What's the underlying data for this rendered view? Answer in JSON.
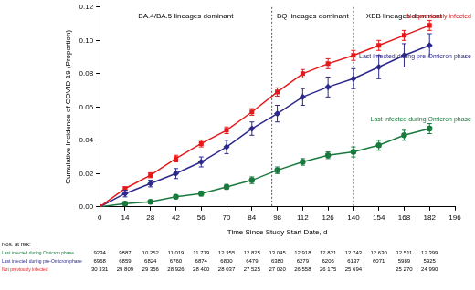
{
  "chart_data": {
    "type": "line",
    "x_label": "Time Since Study Start Date, d",
    "y_label": "Cumulative Incidence of COVID-19 (Proportion)",
    "x": [
      0,
      14,
      28,
      42,
      56,
      70,
      84,
      98,
      112,
      126,
      140,
      154,
      168,
      182
    ],
    "series": [
      {
        "name": "Not previously infected",
        "color": "#e41a1c",
        "marker": "square",
        "values": [
          0,
          0.011,
          0.019,
          0.029,
          0.038,
          0.046,
          0.057,
          0.069,
          0.08,
          0.086,
          0.091,
          0.097,
          0.103,
          0.109
        ],
        "error": [
          0,
          0.001,
          0.0015,
          0.002,
          0.002,
          0.002,
          0.002,
          0.0025,
          0.0025,
          0.003,
          0.003,
          0.003,
          0.003,
          0.003
        ]
      },
      {
        "name": "Last infected during pre-Omicron phase",
        "color": "#2d2a8c",
        "marker": "diamond",
        "values": [
          0,
          0.008,
          0.014,
          0.02,
          0.027,
          0.036,
          0.047,
          0.056,
          0.066,
          0.072,
          0.077,
          0.084,
          0.091,
          0.097
        ],
        "error": [
          0,
          0.002,
          0.002,
          0.003,
          0.003,
          0.004,
          0.004,
          0.005,
          0.005,
          0.006,
          0.006,
          0.007,
          0.007,
          0.007
        ]
      },
      {
        "name": "Last infected during Omicron phase",
        "color": "#1b7a3e",
        "marker": "circle",
        "values": [
          0,
          0.002,
          0.003,
          0.006,
          0.008,
          0.012,
          0.016,
          0.022,
          0.027,
          0.031,
          0.033,
          0.037,
          0.043,
          0.047
        ],
        "error": [
          0,
          0.001,
          0.001,
          0.001,
          0.0015,
          0.0015,
          0.002,
          0.002,
          0.002,
          0.002,
          0.003,
          0.003,
          0.003,
          0.003
        ]
      }
    ],
    "xlim": [
      0,
      196
    ],
    "xticks": [
      0,
      14,
      28,
      42,
      56,
      70,
      84,
      98,
      112,
      126,
      140,
      154,
      168,
      182,
      196
    ],
    "ylim": [
      0,
      0.12
    ],
    "yticks": [
      {
        "value": 0,
        "label": "0.00"
      },
      {
        "value": 0.02,
        "label": "0.02"
      },
      {
        "value": 0.04,
        "label": "0.04"
      },
      {
        "value": 0.06,
        "label": "0.06"
      },
      {
        "value": 0.08,
        "label": "0.08"
      },
      {
        "value": 0.1,
        "label": "0.10"
      },
      {
        "value": 0.12,
        "label": "0.12"
      }
    ],
    "grid": false,
    "regions": [
      {
        "label": "BA.4/BA.5 lineages dominant",
        "start": 0,
        "end": 95
      },
      {
        "label": "BQ lineages dominant",
        "start": 95,
        "end": 140
      },
      {
        "label": "XBB lineages dominant",
        "start": 140,
        "end": 196
      }
    ],
    "risk_table": {
      "title": "Nos. at risk:",
      "x": [
        0,
        14,
        28,
        42,
        56,
        70,
        84,
        98,
        112,
        126,
        140,
        154,
        168,
        182
      ],
      "rows": [
        {
          "name": "Last infected during Omicron phase",
          "color": "#1b7a3e",
          "values": [
            "9234",
            "9887",
            "10 252",
            "11 019",
            "11 719",
            "12 355",
            "12 825",
            "13 045",
            "12 918",
            "12 821",
            "12 743",
            "12 630",
            "12 511",
            "12 399"
          ]
        },
        {
          "name": "Last infected during pre-Omicron phase",
          "color": "#2d2a8c",
          "values": [
            "6968",
            "6859",
            "6824",
            "6760",
            "6874",
            "6800",
            "6479",
            "6380",
            "6279",
            "6206",
            "6137",
            "6071",
            "5989",
            "5925"
          ]
        },
        {
          "name": "Not previously infected",
          "color": "#e41a1c",
          "values": [
            "30 331",
            "29 809",
            "29 356",
            "28 926",
            "28 400",
            "28 037",
            "27 525",
            "27 020",
            "26 558",
            "26 175",
            "25 694",
            null,
            "25 270",
            "24 990"
          ]
        }
      ]
    }
  }
}
